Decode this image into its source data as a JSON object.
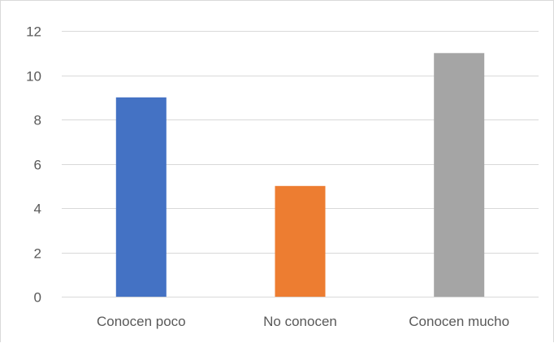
{
  "chart_data": {
    "type": "bar",
    "title": "",
    "xlabel": "",
    "ylabel": "",
    "categories": [
      "Conocen poco",
      "No conocen",
      "Conocen mucho"
    ],
    "values": [
      9,
      5,
      11
    ],
    "colors": [
      "#4472c4",
      "#ed7d31",
      "#a5a5a5"
    ],
    "ylim": [
      0,
      12
    ],
    "yticks": [
      0,
      2,
      4,
      6,
      8,
      10,
      12
    ],
    "grid": true,
    "legend": "none",
    "gridline_color": "#d9d9d9",
    "label_color": "#595959"
  }
}
